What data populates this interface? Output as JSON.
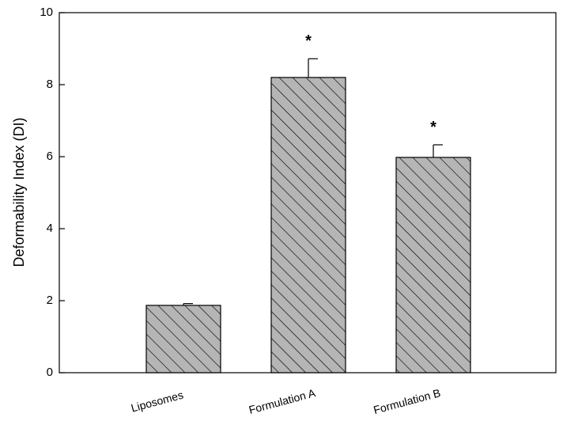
{
  "chart_data": {
    "type": "bar",
    "categories": [
      "Liposomes",
      "Formulation A",
      "Formulation B"
    ],
    "values": [
      1.87,
      8.2,
      5.98
    ],
    "errors": [
      0.05,
      0.52,
      0.35
    ],
    "significance": [
      "",
      "*",
      "*"
    ],
    "xlabel": "",
    "ylabel": "Deformability Index (DI)",
    "ylim": [
      0,
      10
    ],
    "yticks": [
      0,
      2,
      4,
      6,
      8,
      10
    ],
    "grid": false,
    "legend": "none",
    "bar_fill": "#b5b5b5",
    "bar_hatch": "diagonal",
    "bar_edge": "#000000"
  }
}
